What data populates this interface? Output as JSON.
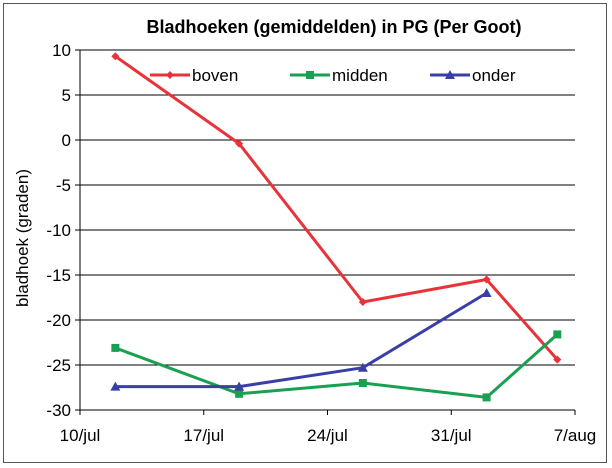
{
  "chart_data": {
    "type": "line",
    "title": "Bladhoeken (gemiddelden)  in PG (Per Goot)",
    "ylabel": "bladhoek (graden)",
    "xlabel": "",
    "x_ticks": [
      "10/jul",
      "17/jul",
      "24/jul",
      "31/jul",
      "7/aug"
    ],
    "x_range": [
      "2010-07-10",
      "2010-08-07"
    ],
    "ylim": [
      -30,
      10
    ],
    "y_ticks": [
      10,
      5,
      0,
      -5,
      -10,
      -15,
      -20,
      -25,
      -30
    ],
    "grid": "horizontal",
    "legend": "top",
    "series": [
      {
        "name": "boven",
        "color": "#e8333a",
        "marker": "diamond",
        "points": [
          {
            "x": "2010-07-12",
            "y": 9.3
          },
          {
            "x": "2010-07-19",
            "y": -0.4
          },
          {
            "x": "2010-07-26",
            "y": -18.0
          },
          {
            "x": "2010-08-02",
            "y": -15.5
          },
          {
            "x": "2010-08-06",
            "y": -24.4
          }
        ]
      },
      {
        "name": "midden",
        "color": "#1aa052",
        "marker": "square",
        "points": [
          {
            "x": "2010-07-12",
            "y": -23.1
          },
          {
            "x": "2010-07-19",
            "y": -28.2
          },
          {
            "x": "2010-07-26",
            "y": -27.0
          },
          {
            "x": "2010-08-02",
            "y": -28.6
          },
          {
            "x": "2010-08-06",
            "y": -21.6
          }
        ]
      },
      {
        "name": "onder",
        "color": "#3a3fa8",
        "marker": "triangle",
        "points": [
          {
            "x": "2010-07-12",
            "y": -27.4
          },
          {
            "x": "2010-07-19",
            "y": -27.4
          },
          {
            "x": "2010-07-26",
            "y": -25.3
          },
          {
            "x": "2010-08-02",
            "y": -17.0
          }
        ]
      }
    ]
  }
}
